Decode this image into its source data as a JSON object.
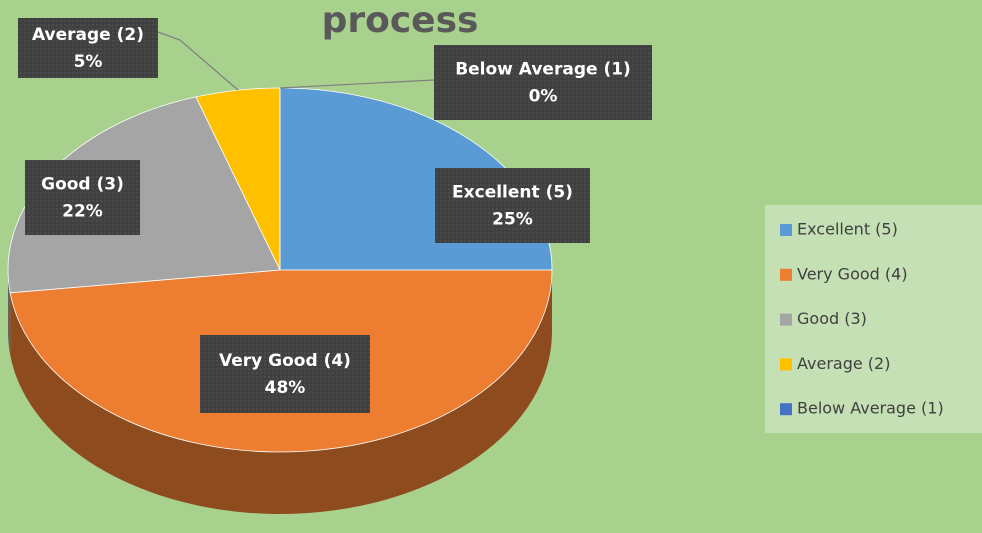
{
  "chart_data": {
    "type": "pie",
    "title": "process",
    "categories": [
      "Excellent (5)",
      "Very Good (4)",
      "Good (3)",
      "Average (2)",
      "Below Average (1)"
    ],
    "values": [
      25,
      48,
      22,
      5,
      0
    ],
    "value_labels": [
      "25%",
      "48%",
      "22%",
      "5%",
      "0%"
    ],
    "colors": [
      "#5b9bd5",
      "#ed7d31",
      "#a5a5a5",
      "#ffc000",
      "#4472c4"
    ],
    "legend": "right"
  }
}
